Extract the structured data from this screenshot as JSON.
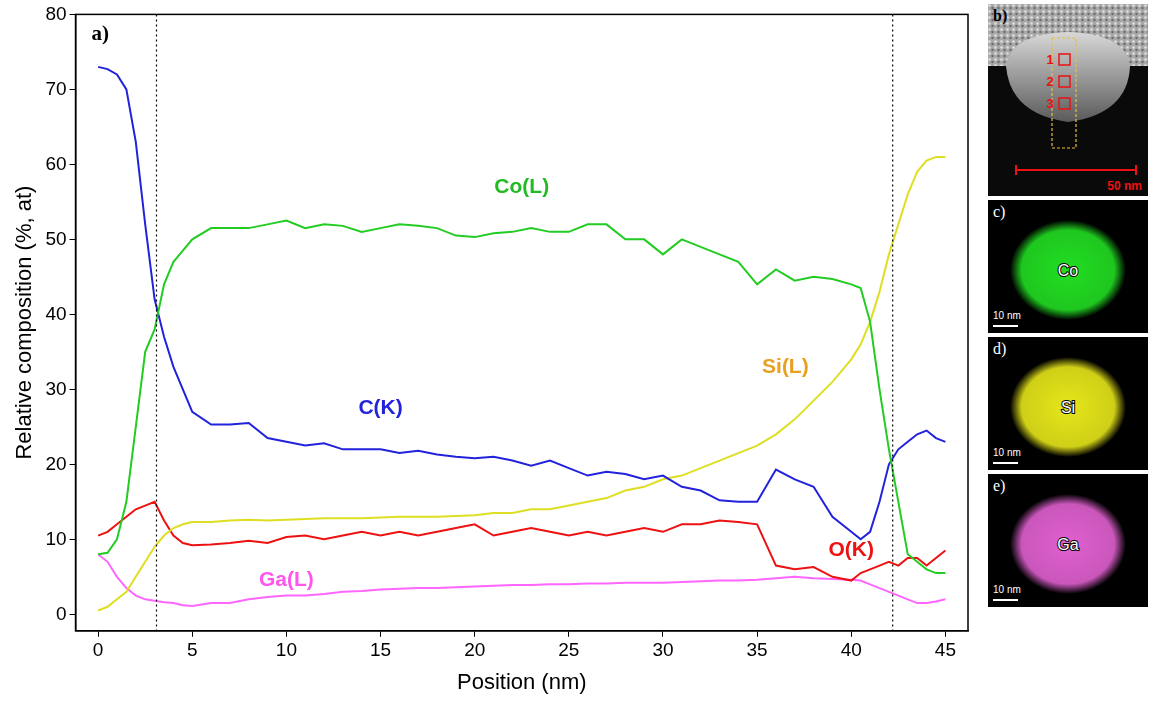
{
  "chart_data": {
    "type": "line",
    "panel_label": "a)",
    "x_label": "Position (nm)",
    "y_label": "Relative composition (%, at)",
    "x": [
      0,
      0.5,
      1,
      1.5,
      2,
      2.5,
      3,
      3.5,
      4,
      4.5,
      5,
      6,
      7,
      8,
      9,
      10,
      11,
      12,
      13,
      14,
      15,
      16,
      17,
      18,
      19,
      20,
      21,
      22,
      23,
      24,
      25,
      26,
      27,
      28,
      29,
      30,
      31,
      32,
      33,
      34,
      35,
      36,
      37,
      38,
      39,
      40,
      40.5,
      41,
      41.5,
      42,
      42.5,
      43,
      43.5,
      44,
      44.5,
      45
    ],
    "series": [
      {
        "name": "Co(L)",
        "color": "#22cc22",
        "label_color": "#22bb22",
        "label_at": [
          22.5,
          57
        ],
        "values": [
          8,
          8.2,
          10,
          15,
          25,
          35,
          38,
          44,
          47,
          48.5,
          50,
          51.5,
          51.5,
          51.5,
          52,
          52.5,
          51.5,
          52,
          51.8,
          51,
          51.5,
          52,
          51.8,
          51.5,
          50.5,
          50.3,
          50.8,
          51,
          51.5,
          51,
          51,
          52,
          52,
          50,
          50,
          48,
          50,
          49,
          48,
          47,
          44,
          46,
          44.5,
          45,
          44.7,
          44,
          43.5,
          39,
          30,
          22,
          15,
          8,
          7,
          6,
          5.5,
          5.5
        ]
      },
      {
        "name": "C(K)",
        "color": "#2222dd",
        "label_color": "#2222dd",
        "label_at": [
          15,
          27.5
        ],
        "values": [
          73,
          72.7,
          72,
          70,
          63,
          52,
          42,
          37,
          33,
          30,
          27,
          25.3,
          25.3,
          25.5,
          23.5,
          23,
          22.5,
          22.8,
          22,
          22,
          22,
          21.5,
          21.8,
          21.3,
          21,
          20.8,
          21,
          20.5,
          19.8,
          20.5,
          19.5,
          18.5,
          19,
          18.7,
          18,
          18.5,
          17,
          16.5,
          15.2,
          15,
          15,
          19.3,
          18,
          17,
          13,
          11,
          10,
          11,
          15,
          20,
          22,
          23,
          24,
          24.5,
          23.5,
          23
        ]
      },
      {
        "name": "Si(L)",
        "color": "#dede22",
        "label_color": "#e8a020",
        "label_at": [
          36.5,
          33
        ],
        "values": [
          0.5,
          1,
          2,
          3,
          5,
          7,
          9,
          10.5,
          11.5,
          12,
          12.3,
          12.3,
          12.5,
          12.6,
          12.5,
          12.6,
          12.7,
          12.8,
          12.8,
          12.8,
          12.9,
          13,
          13,
          13,
          13.1,
          13.2,
          13.5,
          13.5,
          14,
          14,
          14.5,
          15,
          15.5,
          16.5,
          17,
          18,
          18.5,
          19.5,
          20.5,
          21.5,
          22.5,
          24,
          26,
          28.5,
          31,
          34,
          36,
          39,
          43,
          48,
          52,
          56,
          59,
          60.5,
          61,
          61
        ]
      },
      {
        "name": "O(K)",
        "color": "#ee1111",
        "label_color": "#ee1111",
        "label_at": [
          40,
          8.5
        ],
        "values": [
          10.5,
          11,
          12,
          13,
          14,
          14.5,
          15,
          12.5,
          10.5,
          9.5,
          9.2,
          9.3,
          9.5,
          9.8,
          9.5,
          10.3,
          10.5,
          10,
          10.5,
          11,
          10.5,
          11,
          10.5,
          11,
          11.5,
          12,
          10.5,
          11,
          11.5,
          11,
          10.5,
          11,
          10.5,
          11,
          11.5,
          11,
          12,
          12,
          12.5,
          12.3,
          12,
          6.5,
          6,
          6.3,
          5,
          4.5,
          5.5,
          6,
          6.5,
          7,
          6.5,
          7.5,
          7.5,
          6.5,
          7.5,
          8.5
        ]
      },
      {
        "name": "Ga(L)",
        "color": "#ff66ff",
        "label_color": "#ff55ee",
        "label_at": [
          10,
          4.6
        ],
        "values": [
          8,
          7,
          5,
          3.5,
          2.5,
          2,
          1.8,
          1.6,
          1.5,
          1.2,
          1.1,
          1.5,
          1.5,
          2,
          2.3,
          2.5,
          2.5,
          2.7,
          3,
          3.1,
          3.3,
          3.4,
          3.5,
          3.5,
          3.6,
          3.7,
          3.8,
          3.9,
          3.9,
          4,
          4,
          4.1,
          4.1,
          4.2,
          4.2,
          4.2,
          4.3,
          4.4,
          4.5,
          4.5,
          4.6,
          4.8,
          5,
          4.8,
          4.7,
          4.6,
          4.5,
          4,
          3.5,
          3,
          2.5,
          2,
          1.5,
          1.5,
          1.7,
          2
        ]
      }
    ],
    "xlim": [
      -1.2,
      46.2
    ],
    "xticks": [
      0,
      5,
      10,
      15,
      20,
      25,
      30,
      35,
      40,
      45
    ],
    "ylim": [
      -2.2,
      80
    ],
    "yticks": [
      0,
      10,
      20,
      30,
      40,
      50,
      60,
      70,
      80
    ],
    "grid": false,
    "reference_lines": [
      3.1,
      42.2
    ]
  },
  "panels": [
    {
      "label": "b)",
      "markers": [
        "1",
        "2",
        "3"
      ],
      "scale_bar": "50 nm"
    },
    {
      "label": "c)",
      "element": "Co",
      "scale_bar": "10 nm",
      "color": "#22dd22"
    },
    {
      "label": "d)",
      "element": "Si",
      "scale_bar": "10 nm",
      "color": "#e6e61a"
    },
    {
      "label": "e)",
      "element": "Ga",
      "scale_bar": "10 nm",
      "color": "#e060d0"
    }
  ]
}
